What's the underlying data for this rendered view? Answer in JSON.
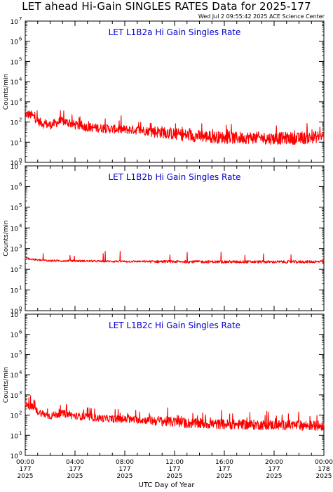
{
  "title": "LET ahead Hi-Gain SINGLES RATES Data for 2025-177",
  "timestamp": "Wed Jul  2 09:55:42 2025 ACE Science Center",
  "xlabel": "UTC Day of Year",
  "ylabel": "Counts/min",
  "colors": {
    "trace": "#ff0000",
    "panel_title": "#0000cc",
    "axes": "#000000"
  },
  "x_ticks": [
    {
      "time": "00:00",
      "doy": "177",
      "year": "2025"
    },
    {
      "time": "04:00",
      "doy": "177",
      "year": "2025"
    },
    {
      "time": "08:00",
      "doy": "177",
      "year": "2025"
    },
    {
      "time": "12:00",
      "doy": "177",
      "year": "2025"
    },
    {
      "time": "16:00",
      "doy": "177",
      "year": "2025"
    },
    {
      "time": "20:00",
      "doy": "177",
      "year": "2025"
    },
    {
      "time": "00:00",
      "doy": "178",
      "year": "2025"
    }
  ],
  "y_ticks": [
    {
      "base": "10",
      "exp": "0"
    },
    {
      "base": "10",
      "exp": "1"
    },
    {
      "base": "10",
      "exp": "2"
    },
    {
      "base": "10",
      "exp": "3"
    },
    {
      "base": "10",
      "exp": "4"
    },
    {
      "base": "10",
      "exp": "5"
    },
    {
      "base": "10",
      "exp": "6"
    },
    {
      "base": "10",
      "exp": "7"
    }
  ],
  "chart_data": [
    {
      "type": "line",
      "title": "LET L1B2a Hi Gain Singles Rate",
      "ylabel": "Counts/min",
      "yscale": "log",
      "ylim": [
        1,
        10000000
      ],
      "xlim": [
        0,
        24
      ],
      "x_unit": "hours UTC, day 177 of 2025",
      "series": [
        {
          "x": [
            0,
            0.5,
            1,
            1.5,
            2,
            3,
            4,
            5,
            6,
            7,
            8,
            9,
            10,
            11,
            12,
            13,
            14,
            15,
            16,
            17,
            18,
            19,
            20,
            21,
            22,
            23,
            24
          ],
          "y": [
            250,
            220,
            110,
            80,
            70,
            110,
            70,
            55,
            50,
            45,
            42,
            40,
            35,
            32,
            25,
            22,
            20,
            18,
            17,
            16,
            17,
            16,
            15,
            16,
            15,
            17,
            20
          ]
        }
      ]
    },
    {
      "type": "line",
      "title": "LET L1B2b Hi Gain Singles Rate",
      "ylabel": "Counts/min",
      "yscale": "log",
      "ylim": [
        1,
        10000000
      ],
      "xlim": [
        0,
        24
      ],
      "x_unit": "hours UTC, day 177 of 2025",
      "series": [
        {
          "x": [
            0,
            0.5,
            1,
            2,
            4,
            6,
            8,
            10,
            12,
            14,
            16,
            18,
            20,
            22,
            24
          ],
          "y": [
            350,
            310,
            280,
            260,
            255,
            245,
            240,
            238,
            235,
            232,
            230,
            230,
            228,
            228,
            235
          ]
        }
      ]
    },
    {
      "type": "line",
      "title": "LET L1B2c Hi Gain Singles Rate",
      "ylabel": "Counts/min",
      "yscale": "log",
      "ylim": [
        1,
        10000000
      ],
      "xlim": [
        0,
        24
      ],
      "x_unit": "hours UTC, day 177 of 2025",
      "series": [
        {
          "x": [
            0,
            0.5,
            1,
            1.5,
            2,
            3,
            4,
            5,
            6,
            7,
            8,
            9,
            10,
            11,
            12,
            13,
            14,
            15,
            16,
            17,
            18,
            19,
            20,
            21,
            22,
            23,
            24
          ],
          "y": [
            300,
            260,
            150,
            110,
            90,
            120,
            90,
            80,
            70,
            65,
            60,
            58,
            55,
            50,
            45,
            40,
            38,
            36,
            35,
            34,
            33,
            33,
            32,
            32,
            31,
            30,
            30
          ]
        }
      ]
    }
  ]
}
